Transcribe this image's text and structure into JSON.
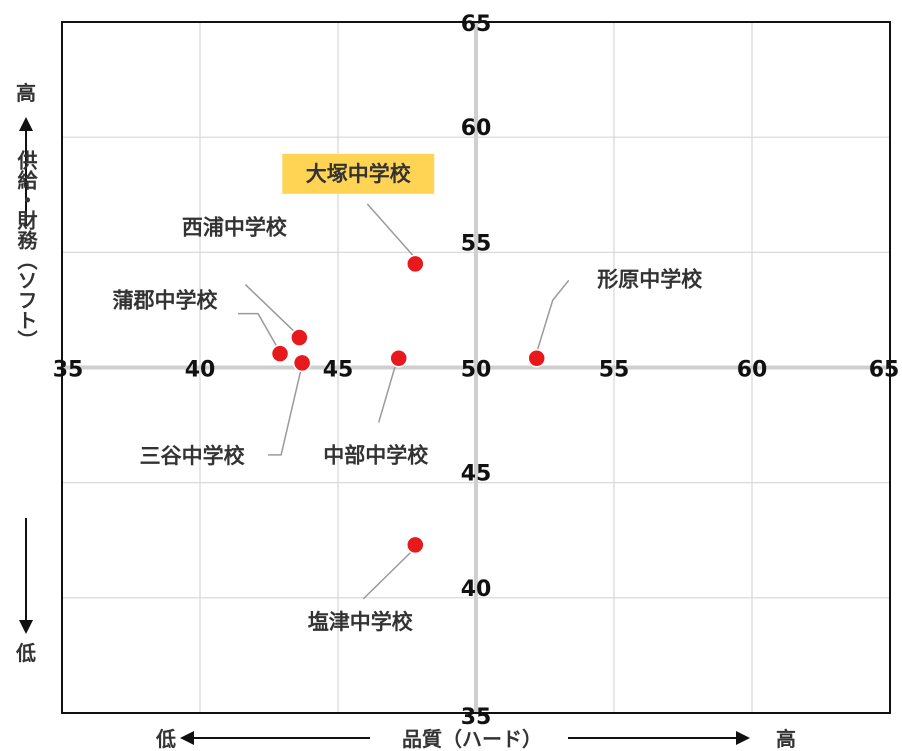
{
  "chart_data": {
    "type": "scatter",
    "x_axis": {
      "label": "品質（ハード）",
      "low": "低",
      "high": "高",
      "range": [
        35,
        65
      ],
      "ticks": [
        "35",
        "40",
        "45",
        "50",
        "55",
        "60",
        "65"
      ]
    },
    "y_axis": {
      "label": "供給・財務（ソフト）",
      "low": "低",
      "high": "高",
      "range": [
        35,
        65
      ],
      "ticks": [
        "35",
        "40",
        "45",
        "50",
        "55",
        "60",
        "65"
      ]
    },
    "grid": true,
    "marker_color": "#e8191c",
    "highlight_color": "#ffd454",
    "points": [
      {
        "name": "大塚中学校",
        "x": 47.8,
        "y": 54.5,
        "highlight": true
      },
      {
        "name": "西浦中学校",
        "x": 43.6,
        "y": 51.3
      },
      {
        "name": "蒲郡中学校",
        "x": 42.9,
        "y": 50.6
      },
      {
        "name": "三谷中学校",
        "x": 43.7,
        "y": 50.2
      },
      {
        "name": "中部中学校",
        "x": 47.2,
        "y": 50.4
      },
      {
        "name": "形原中学校",
        "x": 52.2,
        "y": 50.4
      },
      {
        "name": "塩津中学校",
        "x": 47.8,
        "y": 42.3
      }
    ]
  }
}
